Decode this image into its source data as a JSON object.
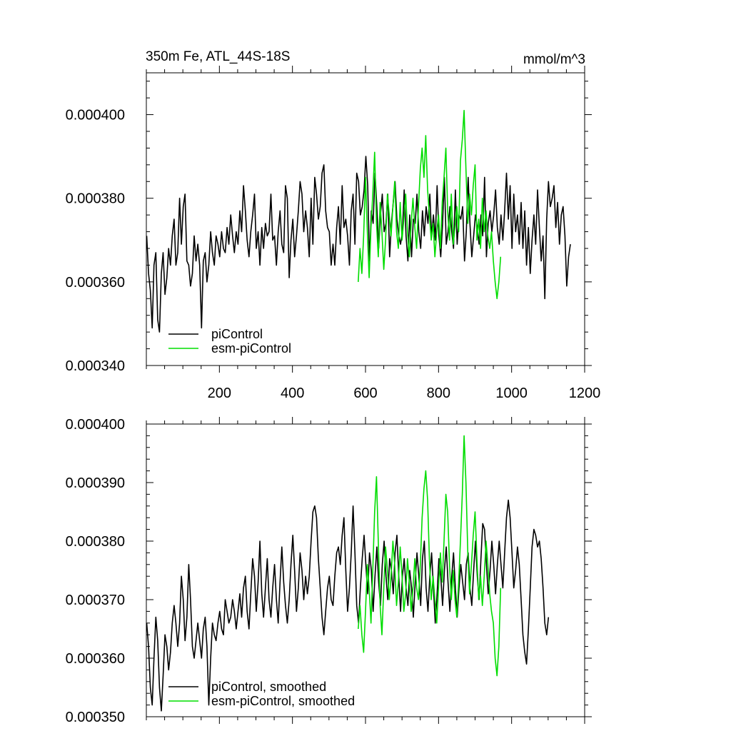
{
  "colors": {
    "piControl": "#000000",
    "esm_piControl": "#00dd00",
    "background": "#ffffff"
  },
  "chart_data": [
    {
      "type": "line",
      "title": "350m Fe, ATL_44S-18S",
      "units": "mmol/m^3",
      "xlim": [
        0,
        1200
      ],
      "ylim": [
        0.00034,
        0.00041
      ],
      "xticks": [
        200,
        400,
        600,
        800,
        1000,
        1200
      ],
      "xtick_labels": [
        "200",
        "400",
        "600",
        "800",
        "1000",
        "1200"
      ],
      "yticks": [
        0.00034,
        0.00036,
        0.00038,
        0.0004
      ],
      "ytick_labels": [
        "0.000340",
        "0.000360",
        "0.000380",
        "0.000400"
      ],
      "legend_position": "bottom-left",
      "series": [
        {
          "name": "piControl",
          "color": "#000000",
          "x_start": 1,
          "x_step": 5,
          "values": [
            0.000371,
            0.000362,
            0.000358,
            0.000349,
            0.000364,
            0.000367,
            0.000351,
            0.000348,
            0.000362,
            0.000367,
            0.000357,
            0.000361,
            0.000368,
            0.000364,
            0.000371,
            0.000375,
            0.000364,
            0.000367,
            0.00038,
            0.000369,
            0.000378,
            0.000381,
            0.000365,
            0.000364,
            0.000359,
            0.000362,
            0.000371,
            0.000365,
            0.000369,
            0.000364,
            0.000349,
            0.000365,
            0.000367,
            0.00036,
            0.000364,
            0.000372,
            0.000367,
            0.000364,
            0.000371,
            0.000369,
            0.000366,
            0.000372,
            0.000368,
            0.000367,
            0.000373,
            0.000369,
            0.000376,
            0.000371,
            0.000367,
            0.000372,
            0.000369,
            0.000377,
            0.000372,
            0.000383,
            0.000377,
            0.00037,
            0.000366,
            0.000372,
            0.000376,
            0.000381,
            0.000368,
            0.000372,
            0.000364,
            0.000373,
            0.000368,
            0.000374,
            0.000371,
            0.000372,
            0.000381,
            0.00037,
            0.000371,
            0.000364,
            0.000372,
            0.000377,
            0.000369,
            0.000367,
            0.000383,
            0.00038,
            0.000361,
            0.00037,
            0.000375,
            0.000366,
            0.000371,
            0.000377,
            0.000384,
            0.000381,
            0.000372,
            0.000377,
            0.000373,
            0.000366,
            0.00038,
            0.000369,
            0.000385,
            0.000381,
            0.000375,
            0.000378,
            0.000386,
            0.000388,
            0.000377,
            0.000373,
            0.000372,
            0.000364,
            0.000369,
            0.000364,
            0.000373,
            0.000378,
            0.000369,
            0.000383,
            0.000373,
            0.000375,
            0.000371,
            0.000364,
            0.000377,
            0.000381,
            0.000369,
            0.000386,
            0.000384,
            0.000376,
            0.000378,
            0.000382,
            0.00039,
            0.000383,
            0.000365,
            0.000377,
            0.000374,
            0.000386,
            0.000378,
            0.000368,
            0.000376,
            0.000381,
            0.000372,
            0.000374,
            0.000381,
            0.000366,
            0.000374,
            0.000379,
            0.000384,
            0.000375,
            0.000371,
            0.000369,
            0.000372,
            0.000382,
            0.000371,
            0.000365,
            0.000376,
            0.000366,
            0.000375,
            0.000374,
            0.000381,
            0.000372,
            0.000368,
            0.000377,
            0.000371,
            0.000378,
            0.000374,
            0.000381,
            0.000371,
            0.000376,
            0.00037,
            0.000383,
            0.000371,
            0.000366,
            0.000374,
            0.000385,
            0.000369,
            0.000372,
            0.000378,
            0.000372,
            0.000368,
            0.000382,
            0.000369,
            0.000376,
            0.000375,
            0.000378,
            0.000365,
            0.000372,
            0.000385,
            0.000374,
            0.000366,
            0.000371,
            0.000376,
            0.000373,
            0.000369,
            0.000376,
            0.000371,
            0.000385,
            0.000366,
            0.000374,
            0.000377,
            0.000372,
            0.000376,
            0.000382,
            0.000373,
            0.000369,
            0.000376,
            0.00037,
            0.000377,
            0.000386,
            0.000375,
            0.000383,
            0.000368,
            0.000381,
            0.000372,
            0.000376,
            0.000369,
            0.000379,
            0.000368,
            0.000377,
            0.000364,
            0.000373,
            0.000362,
            0.00037,
            0.000376,
            0.000369,
            0.000382,
            0.000373,
            0.000365,
            0.000371,
            0.000356,
            0.000375,
            0.000384,
            0.000378,
            0.00038,
            0.000383,
            0.000373,
            0.000379,
            0.000369,
            0.000376,
            0.000378,
            0.000371,
            0.000359,
            0.000366,
            0.000369
          ]
        },
        {
          "name": "esm-piControl",
          "color": "#00dd00",
          "x_start": 580,
          "x_step": 5,
          "values": [
            0.00036,
            0.000368,
            0.000362,
            0.000371,
            0.000385,
            0.000372,
            0.000361,
            0.000373,
            0.000381,
            0.000391,
            0.000374,
            0.000366,
            0.000379,
            0.000372,
            0.000363,
            0.00037,
            0.000381,
            0.000376,
            0.000371,
            0.000378,
            0.000384,
            0.000372,
            0.000368,
            0.000379,
            0.00037,
            0.000375,
            0.000381,
            0.000372,
            0.000366,
            0.000374,
            0.00038,
            0.000373,
            0.000368,
            0.000378,
            0.000387,
            0.000392,
            0.000385,
            0.000395,
            0.000382,
            0.000376,
            0.00037,
            0.000374,
            0.000366,
            0.000372,
            0.000376,
            0.000368,
            0.000379,
            0.000385,
            0.000392,
            0.000377,
            0.00037,
            0.000381,
            0.000369,
            0.000373,
            0.000378,
            0.000372,
            0.000389,
            0.000394,
            0.000401,
            0.000387,
            0.000374,
            0.000381,
            0.000376,
            0.000383,
            0.000388,
            0.00037,
            0.000375,
            0.000368,
            0.00038,
            0.000372,
            0.000377,
            0.000371,
            0.000368,
            0.000372,
            0.000365,
            0.00036,
            0.000356,
            0.00036,
            0.000366
          ]
        }
      ]
    },
    {
      "type": "line",
      "title": "",
      "xlim": [
        0,
        1200
      ],
      "ylim": [
        0.00035,
        0.0004
      ],
      "xticks": [
        200,
        400,
        600,
        800,
        1000,
        1200
      ],
      "xtick_labels": [],
      "yticks": [
        0.00035,
        0.00036,
        0.00037,
        0.00038,
        0.00039,
        0.0004
      ],
      "ytick_labels": [
        "0.000350",
        "0.000360",
        "0.000370",
        "0.000380",
        "0.000390",
        "0.000400"
      ],
      "legend_position": "bottom-left",
      "series": [
        {
          "name": "piControl, smoothed",
          "color": "#000000",
          "x_start": 1,
          "x_step": 5,
          "values": [
            0.000366,
            0.000362,
            0.000355,
            0.000352,
            0.00036,
            0.000367,
            0.000363,
            0.000355,
            0.000351,
            0.000357,
            0.000364,
            0.000362,
            0.000358,
            0.000361,
            0.000366,
            0.000369,
            0.000366,
            0.000362,
            0.000366,
            0.000374,
            0.00037,
            0.000363,
            0.000367,
            0.000376,
            0.00037,
            0.000362,
            0.00036,
            0.000363,
            0.000366,
            0.000363,
            0.00036,
            0.000365,
            0.000367,
            0.000362,
            0.000352,
            0.00036,
            0.000366,
            0.000364,
            0.000363,
            0.000366,
            0.000368,
            0.000365,
            0.000364,
            0.00037,
            0.000368,
            0.000366,
            0.000367,
            0.00037,
            0.000368,
            0.000365,
            0.000368,
            0.000371,
            0.000367,
            0.000372,
            0.000374,
            0.000368,
            0.000365,
            0.000371,
            0.000377,
            0.000374,
            0.000368,
            0.000373,
            0.00038,
            0.000371,
            0.000367,
            0.000372,
            0.000377,
            0.00037,
            0.000367,
            0.000372,
            0.000376,
            0.00037,
            0.000366,
            0.000373,
            0.000379,
            0.000373,
            0.000369,
            0.000366,
            0.00037,
            0.000376,
            0.000381,
            0.000375,
            0.000368,
            0.000372,
            0.000378,
            0.000375,
            0.00037,
            0.000374,
            0.000371,
            0.000374,
            0.00038,
            0.000385,
            0.000386,
            0.000384,
            0.000377,
            0.000372,
            0.000367,
            0.000364,
            0.000368,
            0.000372,
            0.000374,
            0.00037,
            0.000369,
            0.000374,
            0.000378,
            0.000379,
            0.000376,
            0.000381,
            0.000384,
            0.000375,
            0.000368,
            0.000372,
            0.000378,
            0.000386,
            0.000378,
            0.000369,
            0.000366,
            0.000372,
            0.000377,
            0.000381,
            0.000376,
            0.000371,
            0.000378,
            0.000375,
            0.000368,
            0.000374,
            0.000379,
            0.000373,
            0.000369,
            0.000376,
            0.00038,
            0.000374,
            0.00037,
            0.000377,
            0.000375,
            0.000371,
            0.000378,
            0.000381,
            0.000374,
            0.000368,
            0.000374,
            0.000377,
            0.000372,
            0.000369,
            0.000375,
            0.000372,
            0.000367,
            0.000373,
            0.000378,
            0.000374,
            0.000369,
            0.000377,
            0.00038,
            0.000372,
            0.000368,
            0.000374,
            0.000378,
            0.000372,
            0.000366,
            0.000371,
            0.000377,
            0.000374,
            0.000369,
            0.000375,
            0.000379,
            0.000373,
            0.000368,
            0.000374,
            0.000378,
            0.000372,
            0.000367,
            0.000372,
            0.000376,
            0.000373,
            0.00037,
            0.000376,
            0.000378,
            0.000372,
            0.000369,
            0.000375,
            0.00038,
            0.000374,
            0.00037,
            0.000377,
            0.000383,
            0.000382,
            0.000376,
            0.000371,
            0.000375,
            0.00038,
            0.000376,
            0.000371,
            0.000376,
            0.00038,
            0.000376,
            0.000372,
            0.000378,
            0.000384,
            0.000387,
            0.000384,
            0.000378,
            0.000372,
            0.000375,
            0.000379,
            0.000376,
            0.00037,
            0.000364,
            0.000361,
            0.000359,
            0.000365,
            0.000372,
            0.000379,
            0.000382,
            0.000381,
            0.000379,
            0.00038,
            0.000377,
            0.000372,
            0.000366,
            0.000364,
            0.000367
          ]
        },
        {
          "name": "esm-piControl, smoothed",
          "color": "#00dd00",
          "x_start": 580,
          "x_step": 5,
          "values": [
            0.000365,
            0.000369,
            0.000364,
            0.000361,
            0.000368,
            0.000376,
            0.000372,
            0.000366,
            0.000375,
            0.000385,
            0.000391,
            0.00038,
            0.000369,
            0.000364,
            0.000372,
            0.000379,
            0.000375,
            0.00037,
            0.000374,
            0.00038,
            0.000376,
            0.000369,
            0.000373,
            0.000379,
            0.000374,
            0.000368,
            0.000371,
            0.000377,
            0.000373,
            0.000368,
            0.000372,
            0.000377,
            0.000372,
            0.00037,
            0.000376,
            0.000384,
            0.000389,
            0.000392,
            0.000387,
            0.000377,
            0.00037,
            0.000374,
            0.00037,
            0.000366,
            0.000372,
            0.000378,
            0.000373,
            0.00038,
            0.000388,
            0.000385,
            0.000376,
            0.00037,
            0.000375,
            0.00037,
            0.000367,
            0.000373,
            0.00038,
            0.000388,
            0.000398,
            0.00039,
            0.000378,
            0.000371,
            0.000376,
            0.000381,
            0.000385,
            0.000377,
            0.00037,
            0.000374,
            0.000369,
            0.000374,
            0.00038,
            0.000376,
            0.000371,
            0.000368,
            0.000366,
            0.00036,
            0.000357,
            0.000362,
            0.000372
          ]
        }
      ]
    }
  ]
}
